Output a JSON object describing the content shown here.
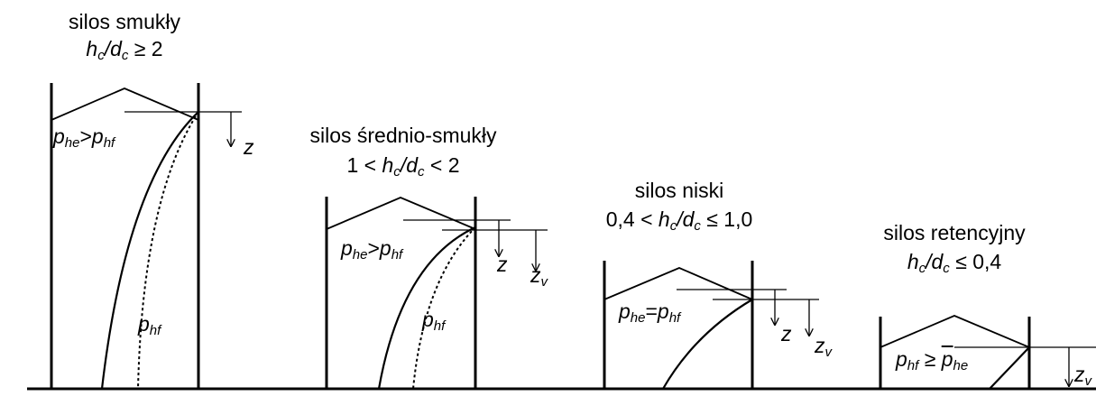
{
  "panels": [
    {
      "title": "silos smukły",
      "ratio": {
        "h": "h",
        "h_sub": "c",
        "d": "/d",
        "d_sub": "c",
        "rel": "≥ 2"
      },
      "pressure_relation": {
        "a": "p",
        "a_sub": "he",
        "op": ">",
        "b": "p",
        "b_sub": "hf"
      },
      "curve_label": {
        "p": "p",
        "sub": "hf"
      },
      "axis": "z"
    },
    {
      "title": "silos średnio-smukły",
      "ratio": {
        "pre": "1 <",
        "h": "h",
        "h_sub": "c",
        "d": "/d",
        "d_sub": "c",
        "rel": "< 2"
      },
      "pressure_relation": {
        "a": "p",
        "a_sub": "he",
        "op": ">",
        "b": "p",
        "b_sub": "hf"
      },
      "curve_label": {
        "p": "p",
        "sub": "hf"
      },
      "axis": "z",
      "axis2": {
        "z": "z",
        "sub": "v"
      }
    },
    {
      "title": "silos niski",
      "ratio": {
        "pre": "0,4 <",
        "h": "h",
        "h_sub": "c",
        "d": "/d",
        "d_sub": "c",
        "rel": "≤ 1,0"
      },
      "pressure_relation": {
        "a": "p",
        "a_sub": "he",
        "op": "=",
        "b": "p",
        "b_sub": "hf"
      },
      "axis": "z",
      "axis2": {
        "z": "z",
        "sub": "v"
      }
    },
    {
      "title": "silos retencyjny",
      "ratio": {
        "h": "h",
        "h_sub": "c",
        "d": "/d",
        "d_sub": "c",
        "rel": "≤ 0,4"
      },
      "pressure_relation": {
        "a": "p",
        "a_sub": "hf",
        "op": "≥",
        "b": "p",
        "b_sub": "he"
      },
      "axis2": {
        "z": "z",
        "sub": "v"
      }
    }
  ]
}
